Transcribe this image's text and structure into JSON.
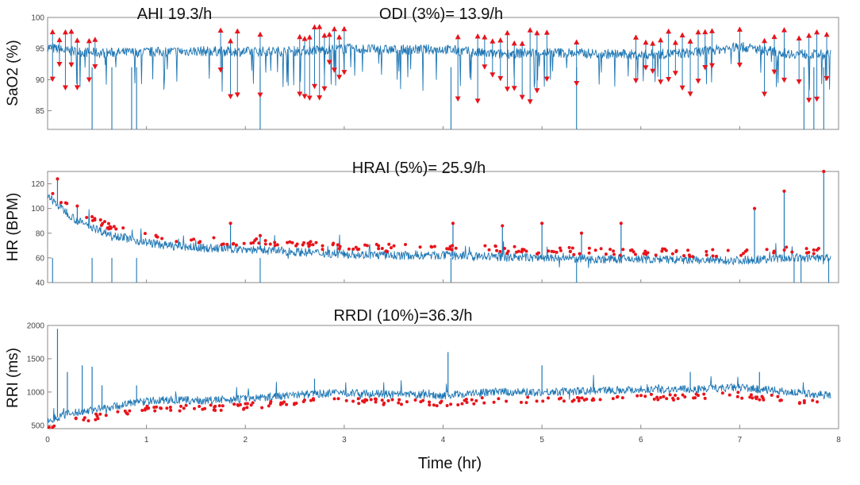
{
  "colors": {
    "signal": "#1f77b4",
    "marker": "#e8141b",
    "axis": "#888888",
    "text": "#111111"
  },
  "chart_data": [
    {
      "type": "line",
      "id": "sao2",
      "ylabel": "SaO2 (%)",
      "ylim": [
        82,
        100
      ],
      "yticks": [
        85,
        90,
        95,
        100
      ],
      "xlim": [
        0,
        8
      ],
      "title_annotations": [
        "AHI 19.3/h",
        "ODI (3%)= 13.9/h"
      ],
      "baseline": 94.5,
      "segments": [
        [
          0.0,
          95.2
        ],
        [
          0.2,
          94.6
        ],
        [
          0.5,
          94.3
        ],
        [
          0.9,
          94.4
        ],
        [
          1.5,
          94.6
        ],
        [
          2.0,
          94.5
        ],
        [
          2.5,
          94.6
        ],
        [
          3.0,
          95.0
        ],
        [
          3.5,
          94.8
        ],
        [
          4.0,
          94.9
        ],
        [
          4.5,
          94.1
        ],
        [
          5.0,
          94.4
        ],
        [
          5.5,
          94.2
        ],
        [
          6.0,
          94.0
        ],
        [
          6.5,
          94.3
        ],
        [
          7.0,
          95.3
        ],
        [
          7.5,
          94.2
        ],
        [
          7.9,
          94.0
        ]
      ],
      "desat_events": [
        0.05,
        0.12,
        0.18,
        0.24,
        0.3,
        0.42,
        0.48,
        1.75,
        1.85,
        1.92,
        2.15,
        2.55,
        2.6,
        2.65,
        2.7,
        2.75,
        2.8,
        2.85,
        2.9,
        2.95,
        3.0,
        4.15,
        4.35,
        4.42,
        4.5,
        4.58,
        4.65,
        4.72,
        4.8,
        4.88,
        4.95,
        5.05,
        5.35,
        5.95,
        6.05,
        6.12,
        6.2,
        6.28,
        6.35,
        6.42,
        6.5,
        6.58,
        6.65,
        6.72,
        7.0,
        7.25,
        7.35,
        7.45,
        7.6,
        7.7,
        7.78,
        7.88
      ],
      "dropouts": [
        0.45,
        0.65,
        0.85,
        0.9,
        2.15,
        4.08,
        5.35,
        7.65,
        7.75,
        7.85
      ]
    },
    {
      "type": "line",
      "id": "hr",
      "ylabel": "HR (BPM)",
      "ylim": [
        40,
        130
      ],
      "yticks": [
        40,
        60,
        80,
        100,
        120
      ],
      "xlim": [
        0,
        8
      ],
      "title_annotations": [
        "HRAI (5%)= 25.9/h"
      ],
      "trend": [
        [
          0.0,
          110
        ],
        [
          0.1,
          103
        ],
        [
          0.3,
          90
        ],
        [
          0.6,
          80
        ],
        [
          0.9,
          74
        ],
        [
          1.2,
          70
        ],
        [
          1.6,
          68
        ],
        [
          2.0,
          67
        ],
        [
          2.5,
          65
        ],
        [
          3.0,
          63
        ],
        [
          3.5,
          62
        ],
        [
          4.0,
          62
        ],
        [
          4.5,
          61
        ],
        [
          5.0,
          60
        ],
        [
          5.5,
          59
        ],
        [
          6.0,
          59
        ],
        [
          6.5,
          58
        ],
        [
          7.0,
          58
        ],
        [
          7.5,
          60
        ],
        [
          7.9,
          60
        ]
      ],
      "spikes": [
        [
          0.1,
          124
        ],
        [
          0.3,
          102
        ],
        [
          1.85,
          88
        ],
        [
          2.15,
          78
        ],
        [
          4.1,
          88
        ],
        [
          4.6,
          86
        ],
        [
          5.0,
          88
        ],
        [
          5.4,
          80
        ],
        [
          5.8,
          88
        ],
        [
          7.15,
          100
        ],
        [
          7.45,
          114
        ],
        [
          7.85,
          130
        ]
      ],
      "dropouts": [
        0.05,
        0.45,
        0.65,
        0.9,
        2.15,
        4.08,
        5.35,
        7.55,
        7.62,
        7.9
      ]
    },
    {
      "type": "line",
      "id": "rri",
      "ylabel": "RRI (ms)",
      "ylim": [
        450,
        2000
      ],
      "yticks": [
        500,
        1000,
        1500,
        2000
      ],
      "xlim": [
        0,
        8
      ],
      "xticks": [
        0,
        1,
        2,
        3,
        4,
        5,
        6,
        7,
        8
      ],
      "xlabel": "Time (hr)",
      "title_annotations": [
        "RRDI (10%)=36.3/h"
      ],
      "trend": [
        [
          0.0,
          560
        ],
        [
          0.15,
          650
        ],
        [
          0.4,
          720
        ],
        [
          0.7,
          790
        ],
        [
          0.9,
          850
        ],
        [
          1.2,
          880
        ],
        [
          1.6,
          870
        ],
        [
          2.0,
          900
        ],
        [
          2.5,
          960
        ],
        [
          3.0,
          990
        ],
        [
          3.5,
          960
        ],
        [
          4.0,
          950
        ],
        [
          4.5,
          1000
        ],
        [
          5.0,
          1000
        ],
        [
          5.5,
          1020
        ],
        [
          6.0,
          1040
        ],
        [
          6.5,
          1040
        ],
        [
          7.0,
          1070
        ],
        [
          7.5,
          1000
        ],
        [
          7.9,
          950
        ]
      ],
      "spikes": [
        [
          0.1,
          1950
        ],
        [
          0.2,
          1300
        ],
        [
          0.35,
          1400
        ],
        [
          0.45,
          1380
        ],
        [
          0.55,
          1100
        ],
        [
          0.9,
          1100
        ],
        [
          2.7,
          1200
        ],
        [
          4.05,
          1600
        ],
        [
          5.0,
          1400
        ],
        [
          6.5,
          1300
        ],
        [
          7.2,
          1300
        ]
      ]
    }
  ]
}
